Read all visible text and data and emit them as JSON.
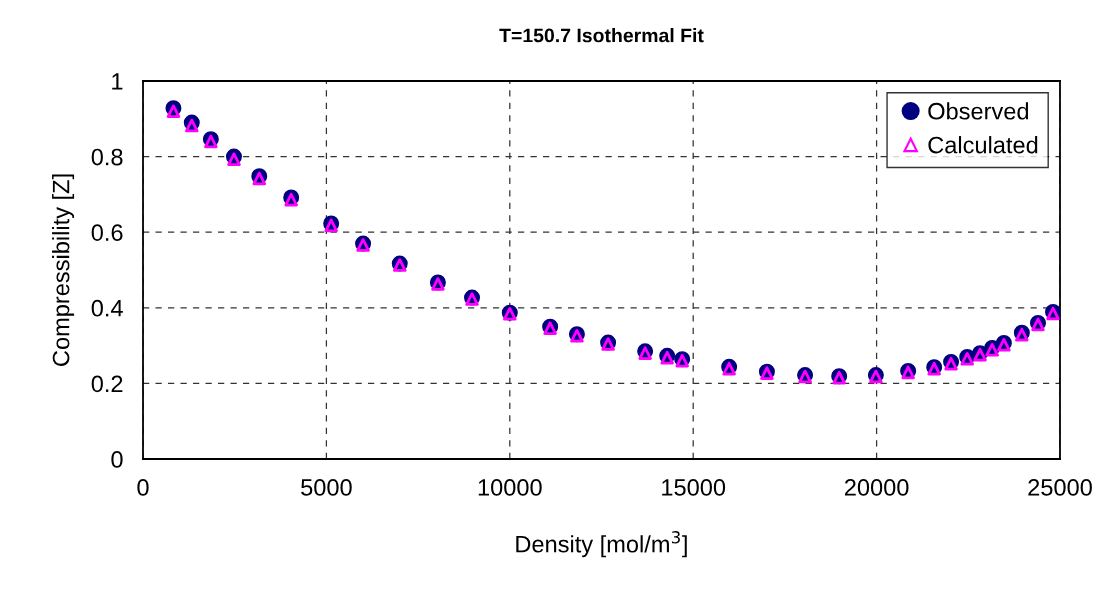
{
  "chart_data": {
    "type": "scatter",
    "title": "T=150.7 Isothermal Fit",
    "xlabel": "Density [mol/m$^{3}$]",
    "ylabel": "Compressibility [Z]",
    "x": [
      830,
      1330,
      1850,
      2480,
      3170,
      4040,
      5130,
      6000,
      7000,
      8040,
      8970,
      10000,
      11100,
      11830,
      12680,
      13690,
      14290,
      14700,
      15980,
      17010,
      18050,
      18980,
      19980,
      20860,
      21570,
      22030,
      22470,
      22820,
      23150,
      23470,
      23960,
      24400,
      24810
    ],
    "series": [
      {
        "name": "Observed",
        "color": "#000080",
        "marker": "circle",
        "values": [
          0.928,
          0.89,
          0.846,
          0.8,
          0.748,
          0.692,
          0.623,
          0.57,
          0.517,
          0.467,
          0.427,
          0.387,
          0.35,
          0.33,
          0.308,
          0.285,
          0.273,
          0.264,
          0.244,
          0.231,
          0.222,
          0.219,
          0.222,
          0.233,
          0.243,
          0.257,
          0.27,
          0.28,
          0.294,
          0.307,
          0.334,
          0.36,
          0.389
        ]
      },
      {
        "name": "Calculated",
        "color": "#ff00ff",
        "marker": "triangle",
        "values": [
          0.92,
          0.882,
          0.84,
          0.793,
          0.742,
          0.686,
          0.618,
          0.566,
          0.513,
          0.463,
          0.423,
          0.384,
          0.346,
          0.326,
          0.304,
          0.28,
          0.268,
          0.26,
          0.239,
          0.227,
          0.218,
          0.215,
          0.218,
          0.229,
          0.239,
          0.252,
          0.265,
          0.276,
          0.289,
          0.302,
          0.329,
          0.356,
          0.385
        ]
      }
    ],
    "xlim": [
      0,
      25000
    ],
    "ylim": [
      0,
      1
    ],
    "xticks": [
      0,
      5000,
      10000,
      15000,
      20000,
      25000
    ],
    "yticks": [
      0,
      {
        "value": 0.2,
        "label": "0.2"
      },
      {
        "value": 0.4,
        "label": "0.4"
      },
      {
        "value": 0.6,
        "label": "0.6"
      },
      {
        "value": 0.8,
        "label": "0.8"
      },
      1
    ],
    "grid": true,
    "legend": "top right"
  }
}
